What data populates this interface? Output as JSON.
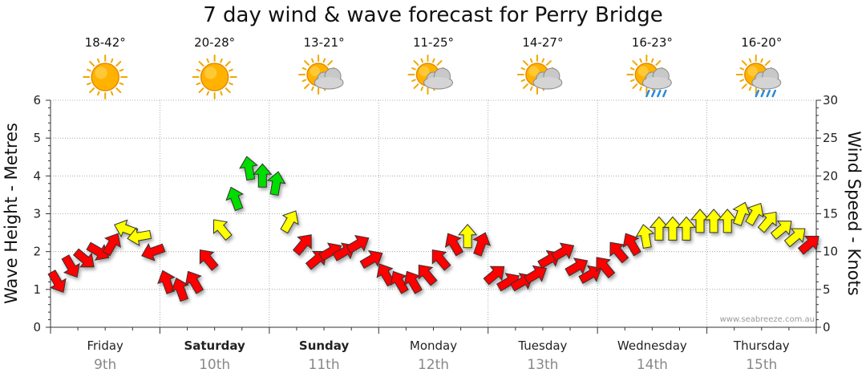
{
  "chart_data": {
    "type": "line",
    "title": "7 day wind & wave forecast for Perry Bridge",
    "ylabel_left": "Wave Height - Metres",
    "ylabel_right": "Wind Speed - Knots",
    "ylim_left": [
      0,
      6
    ],
    "ylim_right": [
      0,
      30
    ],
    "yticks_left": [
      "0",
      "1",
      "2",
      "3",
      "4",
      "5",
      "6"
    ],
    "yticks_right": [
      "0",
      "5",
      "10",
      "15",
      "20",
      "25",
      "30"
    ],
    "grid": true,
    "credit": "www.seabreeze.com.au",
    "colors": {
      "strong": "#00dd00",
      "moderate": "#ffff00",
      "light": "#ff0000",
      "outline": "#333333",
      "grid": "#999999"
    },
    "days": [
      {
        "day": "Friday",
        "date": "9th",
        "temp": "18-42°",
        "weather": "sunny",
        "weather_icon": "sun-icon",
        "bold": false
      },
      {
        "day": "Saturday",
        "date": "10th",
        "temp": "20-28°",
        "weather": "sunny",
        "weather_icon": "sun-icon",
        "bold": true
      },
      {
        "day": "Sunday",
        "date": "11th",
        "temp": "13-21°",
        "weather": "partly cloudy",
        "weather_icon": "sun-cloud-icon",
        "bold": true
      },
      {
        "day": "Monday",
        "date": "12th",
        "temp": "11-25°",
        "weather": "partly cloudy",
        "weather_icon": "sun-cloud-icon",
        "bold": false
      },
      {
        "day": "Tuesday",
        "date": "13th",
        "temp": "14-27°",
        "weather": "partly cloudy",
        "weather_icon": "sun-cloud-icon",
        "bold": false
      },
      {
        "day": "Wednesday",
        "date": "14th",
        "temp": "16-23°",
        "weather": "showers",
        "weather_icon": "sun-rain-icon",
        "bold": false
      },
      {
        "day": "Thursday",
        "date": "15th",
        "temp": "16-20°",
        "weather": "showers",
        "weather_icon": "sun-rain-icon",
        "bold": false
      }
    ],
    "series": [
      {
        "name": "Wind Speed",
        "unit": "knots",
        "x_hours": [
          0,
          3,
          6,
          9,
          12,
          15,
          18,
          21,
          24,
          27,
          30,
          33,
          36,
          39,
          42,
          45,
          48,
          51,
          54,
          57,
          60,
          63,
          66,
          69,
          72,
          75,
          78,
          81,
          84,
          87,
          90,
          93,
          96,
          99,
          102,
          105,
          108,
          111,
          114,
          117,
          120,
          123,
          126,
          129,
          132,
          135,
          138,
          141,
          144,
          147,
          150,
          153,
          156,
          159,
          162,
          165
        ],
        "values": [
          6,
          8,
          9,
          10,
          11,
          13,
          12,
          10,
          6,
          5,
          6,
          9,
          13,
          17,
          21,
          20,
          19,
          14,
          11,
          9,
          10,
          10,
          11,
          9,
          7,
          6,
          6,
          7,
          9,
          11,
          12,
          11,
          7,
          6,
          6,
          7,
          9,
          10,
          8,
          7,
          8,
          10,
          11,
          12,
          13,
          13,
          13,
          14,
          14,
          14,
          15,
          15,
          14,
          13,
          12,
          11
        ],
        "directions_deg": [
          60,
          60,
          40,
          30,
          300,
          200,
          170,
          160,
          250,
          250,
          240,
          230,
          230,
          250,
          260,
          270,
          280,
          300,
          310,
          320,
          330,
          330,
          330,
          330,
          240,
          240,
          240,
          230,
          230,
          240,
          270,
          290,
          320,
          330,
          330,
          330,
          330,
          330,
          330,
          330,
          230,
          230,
          240,
          260,
          270,
          270,
          270,
          270,
          270,
          270,
          290,
          300,
          310,
          320,
          320,
          320
        ]
      }
    ]
  }
}
